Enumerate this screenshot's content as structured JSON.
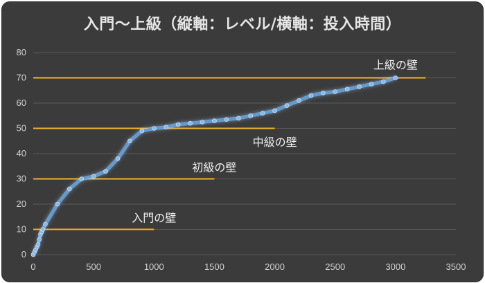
{
  "chart_data": {
    "type": "line",
    "title": "入門〜上級（縦軸：レベル/横軸：投入時間）",
    "xlim": [
      0,
      3500
    ],
    "ylim": [
      0,
      80
    ],
    "x_ticks": [
      0,
      500,
      1000,
      1500,
      2000,
      2500,
      3000,
      3500
    ],
    "y_ticks": [
      0,
      10,
      20,
      30,
      40,
      50,
      60,
      70,
      80
    ],
    "grid": true,
    "series": [
      {
        "x": [
          0,
          10,
          20,
          30,
          40,
          50,
          60,
          70,
          80,
          100,
          200,
          300,
          400,
          500,
          600,
          700,
          800,
          900,
          1000,
          1100,
          1200,
          1300,
          1400,
          1500,
          1600,
          1700,
          1800,
          1900,
          2000,
          2100,
          2200,
          2300,
          2400,
          2500,
          2600,
          2700,
          2800,
          2900,
          3000
        ],
        "y": [
          0,
          1,
          2,
          3,
          4,
          6,
          8,
          9,
          10,
          12,
          20,
          26,
          30,
          31,
          33,
          38,
          45,
          49,
          50,
          50.5,
          51.5,
          52,
          52.5,
          53,
          53.5,
          54,
          55,
          56,
          57,
          59,
          61,
          63,
          64,
          64.5,
          65.5,
          66.5,
          67.5,
          68.5,
          70
        ]
      }
    ],
    "walls": [
      {
        "label": "入門の壁",
        "y": 10,
        "x_start": 0,
        "x_end": 1000,
        "label_x": 1000,
        "label_y": 13
      },
      {
        "label": "初級の壁",
        "y": 30,
        "x_start": 0,
        "x_end": 1500,
        "label_x": 1500,
        "label_y": 33
      },
      {
        "label": "中級の壁",
        "y": 50,
        "x_start": 0,
        "x_end": 2000,
        "label_x": 2000,
        "label_y": 43
      },
      {
        "label": "上級の壁",
        "y": 70,
        "x_start": 0,
        "x_end": 3250,
        "label_x": 3000,
        "label_y": 73.5
      }
    ],
    "colors": {
      "background": "#3b3b3b",
      "grid": "#5a5a5a",
      "line": "#5b9bd5",
      "marker": "#8ab8e6",
      "glow": "#9fd0ff",
      "wall": "#f0b429",
      "text": "#d0d0d0"
    }
  }
}
